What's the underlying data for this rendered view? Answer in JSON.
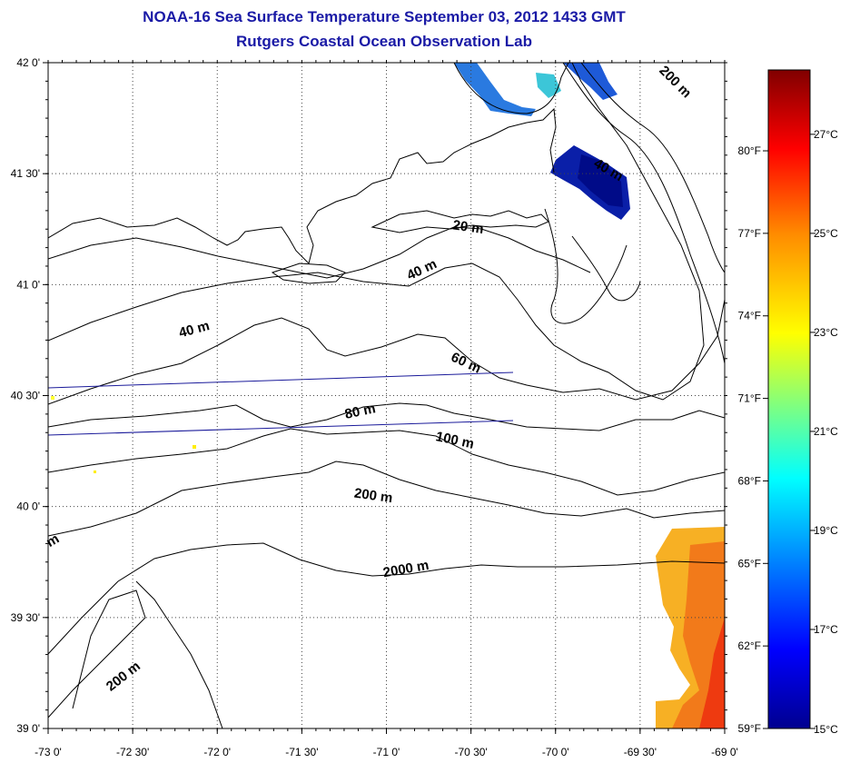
{
  "title": "NOAA-16 Sea Surface Temperature September 03, 2012 1433 GMT",
  "subtitle": "Rutgers Coastal Ocean Observation Lab",
  "map": {
    "lon_ticks": [
      {
        "value": -73.0,
        "label": "-73 0'"
      },
      {
        "value": -72.5,
        "label": "-72 30'"
      },
      {
        "value": -72.0,
        "label": "-72 0'"
      },
      {
        "value": -71.5,
        "label": "-71 30'"
      },
      {
        "value": -71.0,
        "label": "-71 0'"
      },
      {
        "value": -70.5,
        "label": "-70 30'"
      },
      {
        "value": -70.0,
        "label": "-70 0'"
      },
      {
        "value": -69.5,
        "label": "-69 30'"
      },
      {
        "value": -69.0,
        "label": "-69 0'"
      }
    ],
    "lat_ticks": [
      {
        "value": 42.0,
        "label": "42 0'"
      },
      {
        "value": 41.5,
        "label": "41 30'"
      },
      {
        "value": 41.0,
        "label": "41 0'"
      },
      {
        "value": 40.5,
        "label": "40 30'"
      },
      {
        "value": 40.0,
        "label": "40 0'"
      },
      {
        "value": 39.5,
        "label": "39 30'"
      },
      {
        "value": 39.0,
        "label": "39 0'"
      }
    ],
    "contour_labels": [
      {
        "text": "20 m",
        "lon": -70.52,
        "lat": 41.24,
        "angle": 8
      },
      {
        "text": "40 m",
        "lon": -70.78,
        "lat": 41.05,
        "angle": -25
      },
      {
        "text": "40 m",
        "lon": -72.13,
        "lat": 40.78,
        "angle": -15
      },
      {
        "text": "60 m",
        "lon": -70.54,
        "lat": 40.63,
        "angle": 25
      },
      {
        "text": "80 m",
        "lon": -71.15,
        "lat": 40.41,
        "angle": -12
      },
      {
        "text": "100 m",
        "lon": -70.6,
        "lat": 40.28,
        "angle": 12
      },
      {
        "text": "200 m",
        "lon": -71.08,
        "lat": 40.03,
        "angle": 8
      },
      {
        "text": "2000 m",
        "lon": -70.88,
        "lat": 39.7,
        "angle": -10
      },
      {
        "text": "200 m",
        "lon": -72.54,
        "lat": 39.22,
        "angle": -38
      },
      {
        "text": "40 m",
        "lon": -69.7,
        "lat": 41.5,
        "angle": 30
      },
      {
        "text": "200 m",
        "lon": -69.31,
        "lat": 41.9,
        "angle": 45
      },
      {
        "text": "m",
        "lon": -72.96,
        "lat": 39.83,
        "angle": -30
      }
    ]
  },
  "colorbar": {
    "fahrenheit_ticks": [
      {
        "value": 80,
        "label": "80°F"
      },
      {
        "value": 77,
        "label": "77°F"
      },
      {
        "value": 74,
        "label": "74°F"
      },
      {
        "value": 71,
        "label": "71°F"
      },
      {
        "value": 68,
        "label": "68°F"
      },
      {
        "value": 65,
        "label": "65°F"
      },
      {
        "value": 62,
        "label": "62°F"
      },
      {
        "value": 59,
        "label": "59°F"
      }
    ],
    "celsius_ticks": [
      {
        "value": 27,
        "label": "27°C"
      },
      {
        "value": 25,
        "label": "25°C"
      },
      {
        "value": 23,
        "label": "23°C"
      },
      {
        "value": 21,
        "label": "21°C"
      },
      {
        "value": 19,
        "label": "19°C"
      },
      {
        "value": 17,
        "label": "17°C"
      },
      {
        "value": 15,
        "label": "15°C"
      }
    ],
    "range_celsius": [
      15,
      28.3
    ],
    "colors": [
      "#00008f",
      "#0000ff",
      "#00ffff",
      "#ffff00",
      "#ff7f00",
      "#ff0000",
      "#800000"
    ]
  }
}
